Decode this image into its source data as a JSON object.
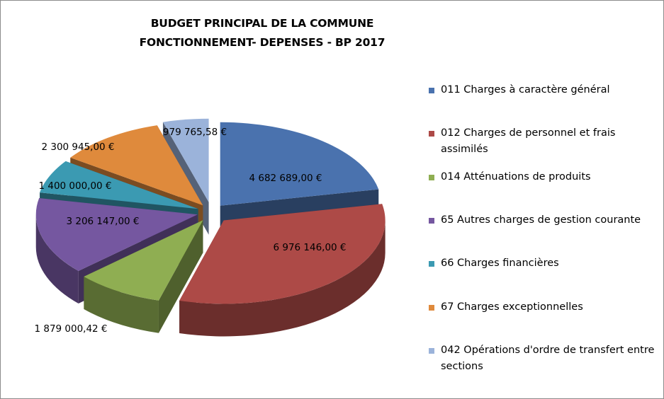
{
  "chart_data": {
    "type": "pie",
    "title_lines": [
      "BUDGET PRINCIPAL DE LA COMMUNE",
      "FONCTIONNEMENT- DEPENSES - BP 2017"
    ],
    "slices": [
      {
        "name": "011 Charges à caractère général",
        "value": 4682689.0,
        "label": "4 682 689,00 €",
        "color": "#4a72ae"
      },
      {
        "name": "012 Charges de personnel et frais assimilés",
        "value": 6976146.0,
        "label": "6 976 146,00 €",
        "color": "#ad4a47"
      },
      {
        "name": "014 Atténuations de produits",
        "value": 1879000.42,
        "label": "1 879 000,42 €",
        "color": "#8fae52"
      },
      {
        "name": "65 Autres charges de gestion courante",
        "value": 3206147.0,
        "label": "3 206 147,00 €",
        "color": "#7557a0"
      },
      {
        "name": "66 Charges financières",
        "value": 1400000.0,
        "label": "1 400 000,00 €",
        "color": "#3b9ab2"
      },
      {
        "name": "67 Charges exceptionnelles",
        "value": 2300945.0,
        "label": "2 300 945,00 €",
        "color": "#df8a3c"
      },
      {
        "name": "042 Opérations d'ordre de transfert entre sections",
        "value": 979765.58,
        "label": "979 765,58 €",
        "color": "#9bb3da"
      }
    ],
    "legend_position": "right",
    "exploded": true,
    "three_d": true
  }
}
